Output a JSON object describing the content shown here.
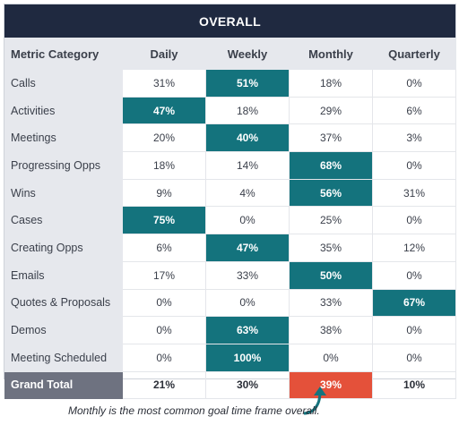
{
  "chart_data": {
    "type": "table",
    "title": "OVERALL",
    "columns": [
      "Metric Category",
      "Daily",
      "Weekly",
      "Monthly",
      "Quarterly"
    ],
    "rows": [
      {
        "label": "Calls",
        "values": [
          "31%",
          "51%",
          "18%",
          "0%"
        ],
        "highlight": 1
      },
      {
        "label": "Activities",
        "values": [
          "47%",
          "18%",
          "29%",
          "6%"
        ],
        "highlight": 0
      },
      {
        "label": "Meetings",
        "values": [
          "20%",
          "40%",
          "37%",
          "3%"
        ],
        "highlight": 1
      },
      {
        "label": "Progressing Opps",
        "values": [
          "18%",
          "14%",
          "68%",
          "0%"
        ],
        "highlight": 2
      },
      {
        "label": "Wins",
        "values": [
          "9%",
          "4%",
          "56%",
          "31%"
        ],
        "highlight": 2
      },
      {
        "label": "Cases",
        "values": [
          "75%",
          "0%",
          "25%",
          "0%"
        ],
        "highlight": 0
      },
      {
        "label": "Creating Opps",
        "values": [
          "6%",
          "47%",
          "35%",
          "12%"
        ],
        "highlight": 1
      },
      {
        "label": "Emails",
        "values": [
          "17%",
          "33%",
          "50%",
          "0%"
        ],
        "highlight": 2
      },
      {
        "label": "Quotes & Proposals",
        "values": [
          "0%",
          "0%",
          "33%",
          "67%"
        ],
        "highlight": 3
      },
      {
        "label": "Demos",
        "values": [
          "0%",
          "63%",
          "38%",
          "0%"
        ],
        "highlight": 1
      },
      {
        "label": "Meeting Scheduled",
        "values": [
          "0%",
          "100%",
          "0%",
          "0%"
        ],
        "highlight": 1
      }
    ],
    "total": {
      "label": "Grand Total",
      "values": [
        "21%",
        "30%",
        "39%",
        "10%"
      ],
      "highlight": 2
    },
    "colors": {
      "highlight": "#14737d",
      "total_highlight": "#e4513a",
      "header": "#1f2940"
    }
  },
  "annotation": "Monthly is the most common goal time frame overall."
}
